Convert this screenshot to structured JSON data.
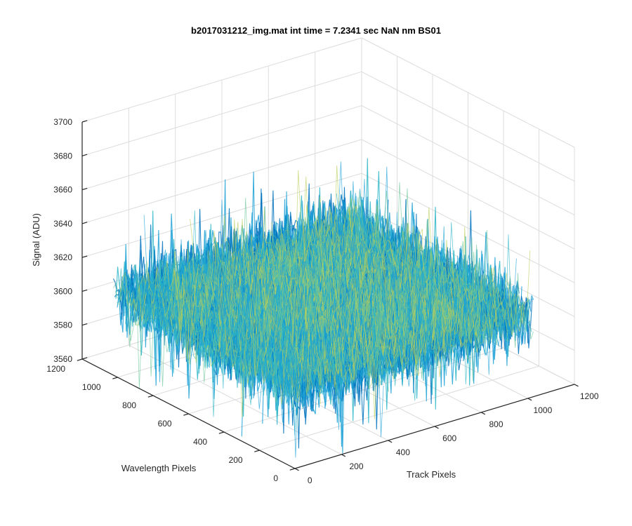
{
  "chart_data": {
    "type": "surface",
    "title": "b2017031212_img.mat int time = 7.2341 sec  NaN nm BS01",
    "xlabel": "Track Pixels",
    "ylabel": "Wavelength Pixels",
    "zlabel": "Signal (ADU)",
    "xlim": [
      0,
      1200
    ],
    "ylim": [
      0,
      1200
    ],
    "zlim": [
      3560,
      3700
    ],
    "xticks": [
      0,
      200,
      400,
      600,
      800,
      1000,
      1200
    ],
    "yticks": [
      0,
      200,
      400,
      600,
      800,
      1000,
      1200
    ],
    "zticks": [
      3560,
      3580,
      3600,
      3620,
      3640,
      3660,
      3680,
      3700
    ],
    "grid": true,
    "surface_extent": {
      "x": [
        0,
        1024
      ],
      "y": [
        0,
        1024
      ]
    },
    "surface_mean": 3608,
    "surface_noise_range": [
      3570,
      3662
    ],
    "colormap": [
      "#0072bd",
      "#1aa0d6",
      "#2bb5c8",
      "#6cc69a",
      "#b9cf5a"
    ]
  }
}
